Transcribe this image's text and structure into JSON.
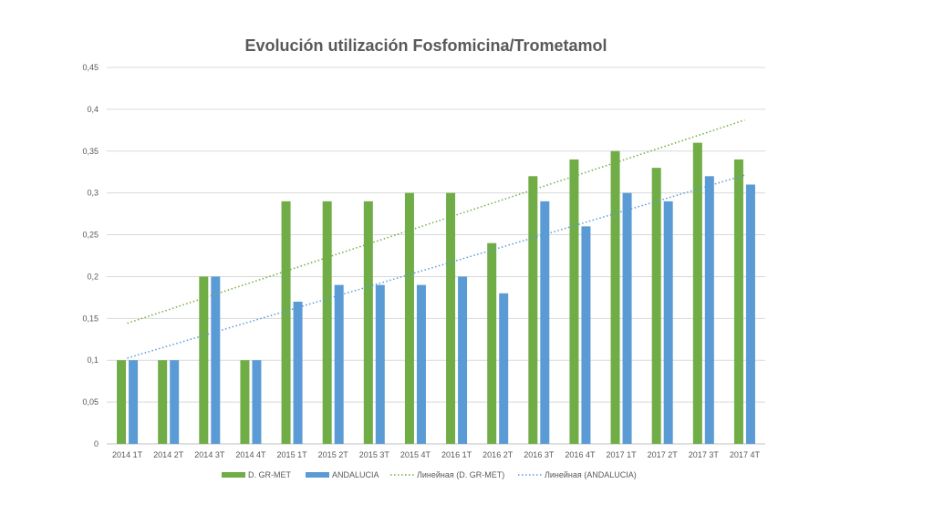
{
  "chart_data": {
    "type": "bar",
    "title": "Evolución utilización Fosfomicina/Trometamol",
    "xlabel": "",
    "ylabel": "",
    "ylim": [
      0,
      0.45
    ],
    "yticks": [
      "0",
      "0,05",
      "0,1",
      "0,15",
      "0,2",
      "0,25",
      "0,3",
      "0,35",
      "0,4",
      "0,45"
    ],
    "ytick_values": [
      0,
      0.05,
      0.1,
      0.15,
      0.2,
      0.25,
      0.3,
      0.35,
      0.4,
      0.45
    ],
    "grid": true,
    "legend_position": "bottom",
    "categories": [
      "2014 1T",
      "2014 2T",
      "2014 3T",
      "2014 4T",
      "2015 1T",
      "2015 2T",
      "2015 3T",
      "2015 4T",
      "2016 1T",
      "2016 2T",
      "2016 3T",
      "2016 4T",
      "2017 1T",
      "2017 2T",
      "2017 3T",
      "2017 4T"
    ],
    "series": [
      {
        "name": "D. GR-MET",
        "color": "#70AD47",
        "values": [
          0.1,
          0.1,
          0.2,
          0.1,
          0.29,
          0.29,
          0.29,
          0.3,
          0.3,
          0.24,
          0.32,
          0.34,
          0.35,
          0.33,
          0.36,
          0.34
        ]
      },
      {
        "name": "ANDALUCIA",
        "color": "#5B9BD5",
        "values": [
          0.1,
          0.1,
          0.2,
          0.1,
          0.17,
          0.19,
          0.19,
          0.19,
          0.2,
          0.18,
          0.29,
          0.26,
          0.3,
          0.29,
          0.32,
          0.31
        ]
      }
    ],
    "trendlines": [
      {
        "name": "Линейная (D. GR-MET)",
        "color": "#70AD47",
        "style": "dotted",
        "of": "D. GR-MET"
      },
      {
        "name": "Линейная (ANDALUCIA)",
        "color": "#5B9BD5",
        "style": "dotted",
        "of": "ANDALUCIA"
      }
    ]
  }
}
